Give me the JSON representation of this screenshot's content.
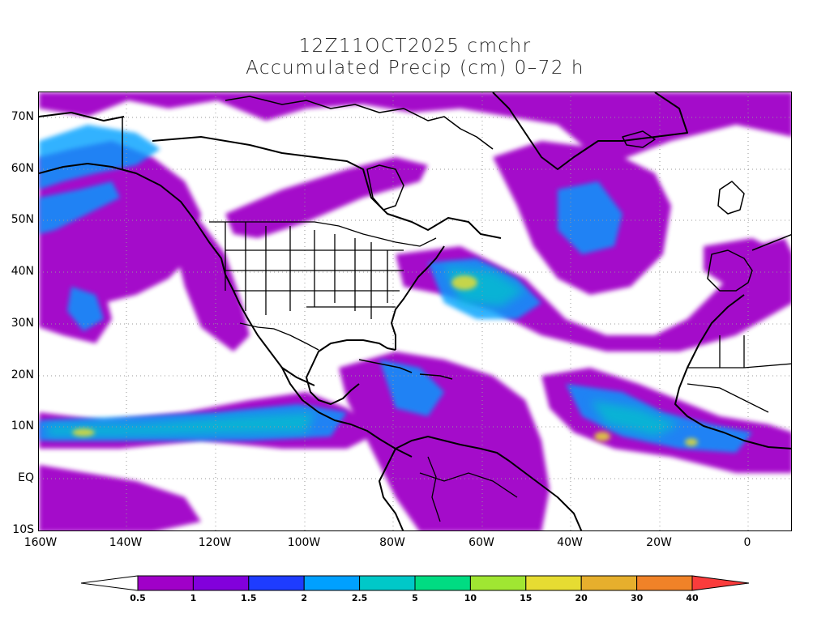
{
  "title": {
    "line1": "12Z11OCT2025 cmchr",
    "line2": "Accumulated Precip (cm) 0–72 h"
  },
  "map": {
    "lat_labels": [
      "70N",
      "60N",
      "50N",
      "40N",
      "30N",
      "20N",
      "10N",
      "EQ",
      "10S"
    ],
    "lon_labels": [
      "160W",
      "140W",
      "120W",
      "100W",
      "80W",
      "60W",
      "40W",
      "20W",
      "0"
    ],
    "colors": {
      "border": "#000000",
      "grid": "#999999"
    }
  },
  "colorbar": {
    "labels": [
      "0.5",
      "1",
      "1.5",
      "2",
      "2.5",
      "5",
      "10",
      "15",
      "20",
      "30",
      "40"
    ],
    "colors": [
      "#ffffff",
      "#a000c8",
      "#8200dc",
      "#1e3cff",
      "#00a0ff",
      "#00c8c8",
      "#00dc82",
      "#a0e632",
      "#e6dc32",
      "#e6af2d",
      "#f08228",
      "#fa3c3c"
    ]
  }
}
